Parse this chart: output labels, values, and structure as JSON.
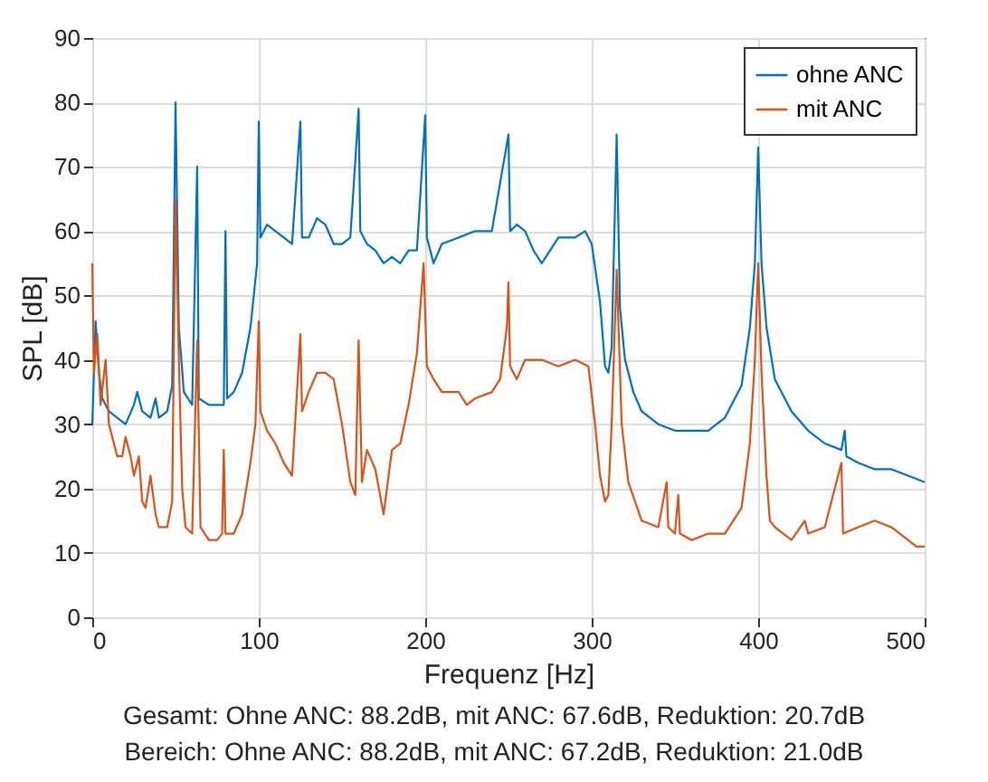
{
  "chart_data": {
    "type": "line",
    "xlabel": "Frequenz [Hz]",
    "ylabel": "SPL [dB]",
    "xlim": [
      0,
      500
    ],
    "xticks": [
      0,
      100,
      200,
      300,
      400,
      500
    ],
    "ylim": [
      0,
      90
    ],
    "yticks": [
      0,
      10,
      20,
      30,
      40,
      50,
      60,
      70,
      80,
      90
    ],
    "grid": true,
    "legend": "top right",
    "line_style": "solid",
    "marker": "none",
    "annotations": [
      "Gesamt: Ohne ANC: 88.2dB, mit ANC: 67.6dB, Reduktion: 20.7dB",
      "Bereich: Ohne ANC: 88.2dB, mit ANC: 67.2dB, Reduktion: 21.0dB"
    ],
    "series": [
      {
        "name": "ohne ANC",
        "color": "#0072bd",
        "x": [
          0,
          2,
          4,
          6,
          10,
          15,
          20,
          25,
          27,
          30,
          35,
          38,
          40,
          45,
          48,
          50,
          52,
          55,
          60,
          63,
          64,
          70,
          75,
          79,
          80,
          81,
          85,
          90,
          95,
          99,
          100,
          101,
          105,
          110,
          115,
          120,
          125,
          126,
          130,
          135,
          140,
          145,
          150,
          155,
          160,
          161,
          165,
          170,
          175,
          180,
          185,
          190,
          195,
          200,
          201,
          205,
          210,
          220,
          230,
          240,
          250,
          251,
          255,
          260,
          265,
          270,
          275,
          280,
          290,
          296,
          300,
          305,
          308,
          310,
          312,
          315,
          317,
          320,
          325,
          330,
          340,
          350,
          360,
          370,
          380,
          390,
          395,
          398,
          400,
          402,
          405,
          410,
          420,
          430,
          440,
          450,
          452,
          453,
          460,
          470,
          480,
          490,
          500
        ],
        "values": [
          30,
          46,
          38,
          34,
          32,
          31,
          30,
          33,
          35,
          32,
          31,
          34,
          31,
          32,
          36,
          80,
          45,
          35,
          33,
          70,
          34,
          33,
          33,
          33,
          60,
          34,
          35,
          38,
          45,
          55,
          77,
          59,
          61,
          60,
          59,
          58,
          77,
          59,
          59,
          62,
          61,
          58,
          58,
          59,
          79,
          60,
          58,
          57,
          55,
          56,
          55,
          57,
          57,
          78,
          59,
          55,
          58,
          59,
          60,
          60,
          75,
          60,
          61,
          60,
          57,
          55,
          57,
          59,
          59,
          60,
          58,
          49,
          39,
          38,
          42,
          75,
          48,
          40,
          35,
          32,
          30,
          29,
          29,
          29,
          31,
          36,
          45,
          55,
          73,
          55,
          45,
          37,
          32,
          29,
          27,
          26,
          29,
          25,
          24,
          23,
          23,
          22,
          21
        ]
      },
      {
        "name": "mit ANC",
        "color": "#d95319",
        "x": [
          0,
          1,
          3,
          5,
          8,
          10,
          15,
          18,
          20,
          23,
          25,
          28,
          30,
          32,
          35,
          38,
          40,
          45,
          48,
          50,
          52,
          54,
          56,
          60,
          63,
          65,
          70,
          75,
          78,
          79,
          80,
          85,
          90,
          95,
          98,
          100,
          101,
          105,
          110,
          115,
          120,
          125,
          126,
          130,
          135,
          140,
          145,
          150,
          155,
          158,
          160,
          162,
          165,
          170,
          175,
          180,
          185,
          190,
          195,
          199,
          201,
          205,
          210,
          215,
          220,
          225,
          230,
          240,
          245,
          249,
          250,
          251,
          255,
          260,
          270,
          280,
          290,
          298,
          302,
          305,
          308,
          310,
          312,
          315,
          318,
          322,
          330,
          340,
          345,
          346,
          350,
          352,
          353,
          360,
          370,
          380,
          390,
          395,
          398,
          400,
          402,
          405,
          407,
          410,
          420,
          428,
          430,
          440,
          450,
          451,
          460,
          470,
          480,
          490,
          495,
          500
        ],
        "values": [
          55,
          38,
          44,
          33,
          40,
          30,
          25,
          25,
          28,
          25,
          22,
          25,
          18,
          17,
          22,
          16,
          14,
          14,
          18,
          65,
          40,
          20,
          14,
          13,
          43,
          14,
          12,
          12,
          13,
          26,
          13,
          13,
          16,
          24,
          30,
          46,
          32,
          29,
          27,
          24,
          22,
          44,
          32,
          35,
          38,
          38,
          37,
          30,
          21,
          19,
          43,
          21,
          26,
          23,
          16,
          26,
          27,
          33,
          41,
          55,
          39,
          37,
          35,
          35,
          35,
          33,
          34,
          35,
          37,
          45,
          52,
          39,
          37,
          40,
          40,
          39,
          40,
          39,
          30,
          22,
          18,
          19,
          30,
          54,
          30,
          21,
          15,
          14,
          21,
          14,
          13,
          19,
          13,
          12,
          13,
          13,
          17,
          27,
          40,
          55,
          38,
          22,
          15,
          14,
          12,
          15,
          13,
          14,
          24,
          13,
          14,
          15,
          14,
          12,
          11,
          11
        ]
      }
    ]
  }
}
